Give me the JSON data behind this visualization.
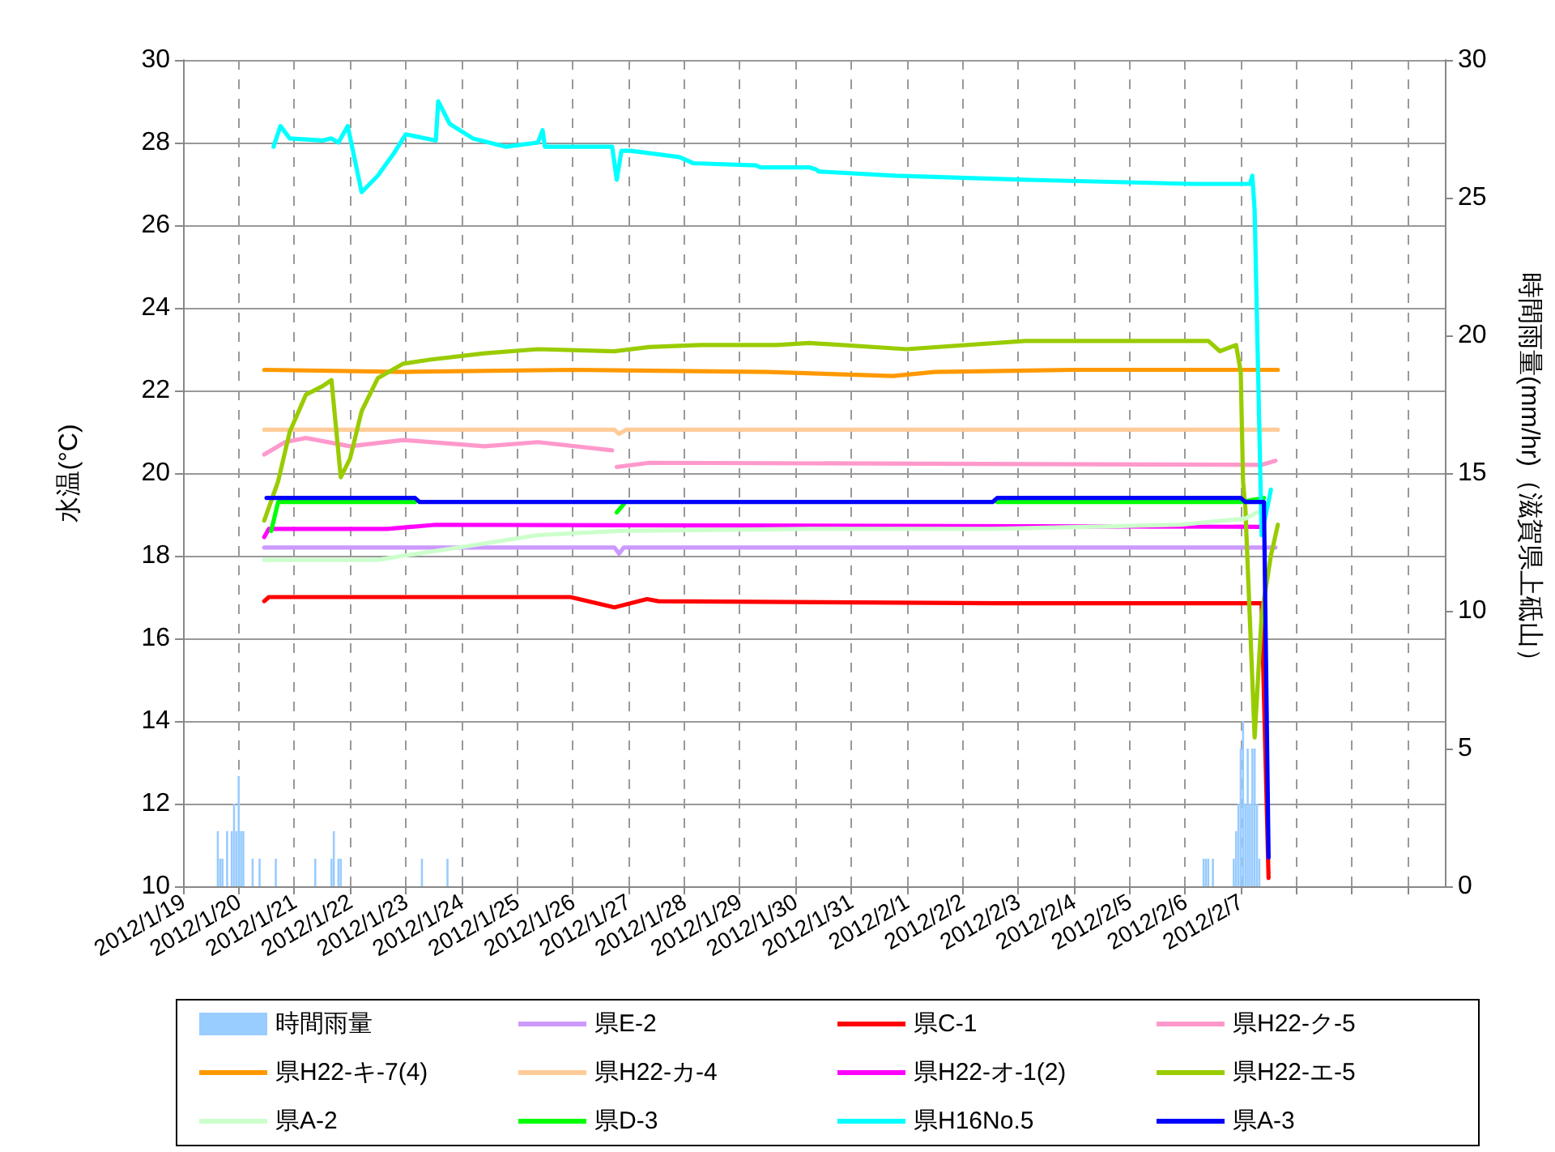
{
  "chart_data": {
    "type": "line",
    "ylabel": "水温(°C)",
    "y2label": "時間雨量(mm/hr)（滋賀県上砥山）",
    "xlim": [
      "2012-01-19",
      "2012-02-10T16:00"
    ],
    "xticks": [
      {
        "value": "2012-01-19",
        "label": "2012/1/19"
      },
      {
        "value": "2012-01-20",
        "label": "2012/1/20"
      },
      {
        "value": "2012-01-21",
        "label": "2012/1/21"
      },
      {
        "value": "2012-01-22",
        "label": "2012/1/22"
      },
      {
        "value": "2012-01-23",
        "label": "2012/1/23"
      },
      {
        "value": "2012-01-24",
        "label": "2012/1/24"
      },
      {
        "value": "2012-01-25",
        "label": "2012/1/25"
      },
      {
        "value": "2012-01-26",
        "label": "2012/1/26"
      },
      {
        "value": "2012-01-27",
        "label": "2012/1/27"
      },
      {
        "value": "2012-01-28",
        "label": "2012/1/28"
      },
      {
        "value": "2012-01-29",
        "label": "2012/1/29"
      },
      {
        "value": "2012-01-30",
        "label": "2012/1/30"
      },
      {
        "value": "2012-01-31",
        "label": "2012/1/31"
      },
      {
        "value": "2012-02-01",
        "label": "2012/2/1"
      },
      {
        "value": "2012-02-02",
        "label": "2012/2/2"
      },
      {
        "value": "2012-02-03",
        "label": "2012/2/3"
      },
      {
        "value": "2012-02-04",
        "label": "2012/2/4"
      },
      {
        "value": "2012-02-05",
        "label": "2012/2/5"
      },
      {
        "value": "2012-02-06",
        "label": "2012/2/6"
      },
      {
        "value": "2012-02-07",
        "label": "2012/2/7"
      },
      {
        "value": "2012-02-08",
        "label": null
      },
      {
        "value": "2012-02-09",
        "label": null
      },
      {
        "value": "2012-02-10",
        "label": null
      }
    ],
    "ylim": [
      10,
      30
    ],
    "yticks": [
      10,
      12,
      14,
      16,
      18,
      20,
      22,
      24,
      26,
      28,
      30
    ],
    "y2lim": [
      0,
      30
    ],
    "y2ticks": [
      0,
      5,
      10,
      15,
      20,
      25,
      30
    ],
    "grid": true,
    "legend": "bottom",
    "marker": "none",
    "series": [
      {
        "name": "時間雨量",
        "type": "bar",
        "axis": "y2",
        "color": "#99ccff",
        "x": [
          "2012-01-19T15:00",
          "2012-01-19T16:00",
          "2012-01-19T17:00",
          "2012-01-19T19:00",
          "2012-01-19T21:00",
          "2012-01-19T22:00",
          "2012-01-19T23:00",
          "2012-01-20T00:00",
          "2012-01-20T01:00",
          "2012-01-20T02:00",
          "2012-01-20T06:00",
          "2012-01-20T09:00",
          "2012-01-20T16:00",
          "2012-01-21T09:00",
          "2012-01-21T16:00",
          "2012-01-21T17:00",
          "2012-01-21T19:00",
          "2012-01-21T20:00",
          "2012-01-23T07:00",
          "2012-01-23T18:00",
          "2012-02-06T08:00",
          "2012-02-06T09:00",
          "2012-02-06T10:00",
          "2012-02-06T12:00",
          "2012-02-06T21:00",
          "2012-02-06T22:00",
          "2012-02-06T23:00",
          "2012-02-07T00:00",
          "2012-02-07T01:00",
          "2012-02-07T02:00",
          "2012-02-07T03:00",
          "2012-02-07T04:00",
          "2012-02-07T05:00",
          "2012-02-07T06:00",
          "2012-02-07T07:00",
          "2012-02-07T08:00"
        ],
        "values": [
          2,
          1,
          1,
          2,
          2,
          3,
          2,
          4,
          2,
          2,
          1,
          1,
          1,
          1,
          1,
          2,
          1,
          1,
          1,
          1,
          1,
          1,
          1,
          1,
          1,
          2,
          3,
          5,
          6,
          3,
          5,
          3,
          5,
          5,
          3,
          1
        ]
      },
      {
        "name": "県E-2",
        "color": "#cc99ff",
        "x": [
          "2012-01-20T11:00",
          "2012-01-23T00:00",
          "2012-01-26T18:00",
          "2012-01-26T20:00",
          "2012-01-26T22:00",
          "2012-02-01T00:00",
          "2012-02-07T15:00"
        ],
        "values": [
          18.2,
          18.2,
          18.2,
          18.05,
          18.2,
          18.2,
          18.2
        ]
      },
      {
        "name": "県C-1",
        "color": "#ff0000",
        "x": [
          "2012-01-20T11:00",
          "2012-01-20T13:00",
          "2012-01-25T23:00",
          "2012-01-26T18:00",
          "2012-01-27T08:00",
          "2012-01-27T13:00",
          "2012-02-02T15:00",
          "2012-02-07T09:00",
          "2012-02-07T12:00"
        ],
        "values": [
          16.9,
          17.0,
          17.0,
          16.75,
          16.95,
          16.9,
          16.85,
          16.85,
          10.2
        ]
      },
      {
        "name": "県H22-ク-5",
        "color": "#ff99cc",
        "x": [
          "2012-01-20T11:00",
          "2012-01-20T20:00",
          "2012-01-21T05:00",
          "2012-01-22T00:00",
          "2012-01-22T23:00",
          "2012-01-24T10:00",
          "2012-01-25T09:00",
          "2012-01-26T17:00",
          "2012-01-26T18:00",
          "2012-01-26T19:00",
          "2012-01-27T09:00",
          "2012-02-07T09:00",
          "2012-02-07T15:00"
        ],
        "values": [
          20.45,
          20.75,
          20.85,
          20.65,
          20.8,
          20.65,
          20.75,
          20.55,
          null,
          20.15,
          20.25,
          20.2,
          20.3
        ]
      },
      {
        "name": "県H22-キ-7(4)",
        "color": "#ff9900",
        "x": [
          "2012-01-20T11:00",
          "2012-01-23T00:00",
          "2012-01-26T00:00",
          "2012-01-29T12:00",
          "2012-01-31T18:00",
          "2012-02-01T12:00",
          "2012-02-04T00:00",
          "2012-02-07T16:00"
        ],
        "values": [
          22.5,
          22.45,
          22.5,
          22.45,
          22.35,
          22.45,
          22.5,
          22.5
        ]
      },
      {
        "name": "県H22-カ-4",
        "color": "#ffcc99",
        "x": [
          "2012-01-20T11:00",
          "2012-01-26T18:00",
          "2012-01-26T20:00",
          "2012-01-26T23:00",
          "2012-02-07T16:00"
        ],
        "values": [
          21.05,
          21.05,
          20.95,
          21.05,
          21.05
        ]
      },
      {
        "name": "県H22-オ-1(2)",
        "color": "#ff00ff",
        "x": [
          "2012-01-20T11:00",
          "2012-01-20T13:00",
          "2012-01-22T16:00",
          "2012-01-23T13:00",
          "2012-02-07T08:00"
        ],
        "values": [
          18.45,
          18.65,
          18.65,
          18.75,
          18.7
        ]
      },
      {
        "name": "県H22-エ-5",
        "color": "#99cc00",
        "x": [
          "2012-01-20T11:00",
          "2012-01-20T17:00",
          "2012-01-20T22:00",
          "2012-01-21T05:00",
          "2012-01-21T12:00",
          "2012-01-21T16:00",
          "2012-01-21T20:00",
          "2012-01-22T00:00",
          "2012-01-22T05:00",
          "2012-01-22T12:00",
          "2012-01-22T23:00",
          "2012-01-23T11:00",
          "2012-01-24T10:00",
          "2012-01-25T09:00",
          "2012-01-26T18:00",
          "2012-01-27T09:00",
          "2012-01-28T07:00",
          "2012-01-29T16:00",
          "2012-01-30T06:00",
          "2012-02-01T00:00",
          "2012-02-03T03:00",
          "2012-02-06T10:00",
          "2012-02-06T15:00",
          "2012-02-06T22:00",
          "2012-02-07T00:00",
          "2012-02-07T01:00",
          "2012-02-07T02:00",
          "2012-02-07T06:00",
          "2012-02-07T09:00",
          "2012-02-07T13:00",
          "2012-02-07T16:00"
        ],
        "values": [
          18.85,
          19.8,
          21.0,
          21.9,
          22.1,
          22.25,
          19.9,
          20.35,
          21.5,
          22.3,
          22.65,
          22.75,
          22.9,
          23.0,
          22.95,
          23.05,
          23.1,
          23.1,
          23.15,
          23.0,
          23.2,
          23.2,
          22.95,
          23.1,
          22.45,
          19.8,
          19.15,
          13.6,
          16.55,
          18.0,
          18.75
        ]
      },
      {
        "name": "県A-2",
        "color": "#ccffcc",
        "x": [
          "2012-01-20T11:00",
          "2012-01-22T12:00",
          "2012-01-22T23:00",
          "2012-01-23T23:00",
          "2012-01-25T09:00",
          "2012-01-26T20:00",
          "2012-01-30T06:00",
          "2012-02-02T13:00",
          "2012-02-05T22:00",
          "2012-02-07T02:00",
          "2012-02-07T07:00"
        ],
        "values": [
          17.9,
          17.9,
          18.0,
          18.2,
          18.5,
          18.6,
          18.65,
          18.65,
          18.75,
          18.9,
          19.05
        ]
      },
      {
        "name": "県D-3",
        "color": "#00ff00",
        "x": [
          "2012-01-20T14:00",
          "2012-01-20T17:00",
          "2012-01-23T04:00",
          "2012-01-24T00:00",
          "2012-01-26T19:00",
          "2012-01-26T22:00",
          "2012-01-28T00:00",
          "2012-02-02T15:00",
          "2012-02-07T00:00",
          "2012-02-07T10:00"
        ],
        "values": [
          18.6,
          19.3,
          19.3,
          null,
          19.05,
          19.25,
          null,
          19.3,
          19.3,
          19.4
        ]
      },
      {
        "name": "県H16No.5",
        "color": "#00ffff",
        "x": [
          "2012-01-20T15:00",
          "2012-01-20T18:00",
          "2012-01-20T22:00",
          "2012-01-21T12:00",
          "2012-01-21T16:00",
          "2012-01-21T19:00",
          "2012-01-21T23:00",
          "2012-01-22T05:00",
          "2012-01-22T12:00",
          "2012-01-22T19:00",
          "2012-01-23T00:00",
          "2012-01-23T13:00",
          "2012-01-23T14:00",
          "2012-01-23T19:00",
          "2012-01-24T05:00",
          "2012-01-24T19:00",
          "2012-01-25T09:00",
          "2012-01-25T11:00",
          "2012-01-25T12:00",
          "2012-01-26T17:00",
          "2012-01-26T19:00",
          "2012-01-26T21:00",
          "2012-01-27T01:00",
          "2012-01-27T22:00",
          "2012-01-28T04:00",
          "2012-01-29T07:00",
          "2012-01-29T09:00",
          "2012-01-30T06:00",
          "2012-01-30T09:00",
          "2012-01-30T10:00",
          "2012-01-31T19:00",
          "2012-02-03T03:00",
          "2012-02-06T03:00",
          "2012-02-07T04:00",
          "2012-02-07T05:00",
          "2012-02-07T06:00",
          "2012-02-07T09:00",
          "2012-02-07T13:00"
        ],
        "values": [
          27.9,
          28.4,
          28.1,
          28.05,
          28.1,
          28.0,
          28.4,
          26.8,
          27.2,
          27.75,
          28.2,
          28.05,
          29.0,
          28.45,
          28.1,
          27.9,
          28.0,
          28.3,
          27.9,
          27.9,
          27.1,
          27.8,
          27.8,
          27.65,
          27.5,
          27.45,
          27.4,
          27.4,
          27.35,
          27.3,
          27.2,
          27.1,
          27.0,
          27.0,
          27.2,
          26.35,
          18.5,
          19.6
        ]
      },
      {
        "name": "県A-3",
        "color": "#0000ff",
        "x": [
          "2012-01-20T12:00",
          "2012-01-23T04:00",
          "2012-01-23T06:00",
          "2012-02-02T13:00",
          "2012-02-02T15:00",
          "2012-02-07T00:00",
          "2012-02-07T02:00",
          "2012-02-07T10:00",
          "2012-02-07T12:00"
        ],
        "values": [
          19.4,
          19.4,
          19.3,
          19.3,
          19.4,
          19.4,
          19.3,
          19.3,
          10.7
        ]
      }
    ]
  }
}
